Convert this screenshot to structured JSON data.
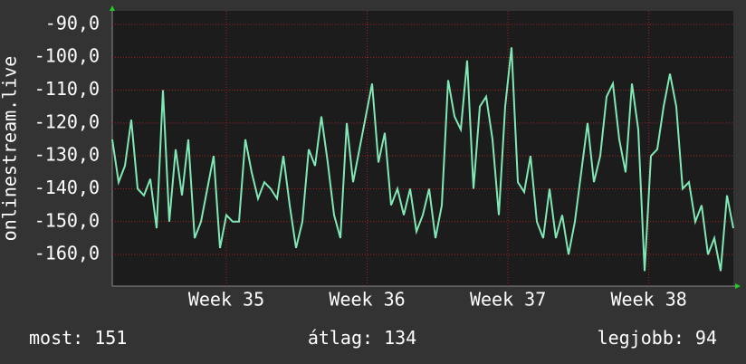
{
  "chart_data": {
    "type": "line",
    "y_label": "onlinestream.live",
    "xlim": [
      34.19,
      38.6
    ],
    "xticks": [
      {
        "value": 35,
        "label": "Week 35"
      },
      {
        "value": 36,
        "label": "Week 36"
      },
      {
        "value": 37,
        "label": "Week 37"
      },
      {
        "value": 38,
        "label": "Week 38"
      }
    ],
    "ylim": [
      -169.6,
      -85.9
    ],
    "yticks": [
      {
        "value": -90,
        "label": "-90,0"
      },
      {
        "value": -100,
        "label": "-100,0"
      },
      {
        "value": -110,
        "label": "-110,0"
      },
      {
        "value": -120,
        "label": "-120,0"
      },
      {
        "value": -130,
        "label": "-130,0"
      },
      {
        "value": -140,
        "label": "-140,0"
      },
      {
        "value": -150,
        "label": "-150,0"
      },
      {
        "value": -160,
        "label": "-160,0"
      }
    ],
    "grid": true,
    "x": [
      34.19,
      34.235,
      34.28,
      34.325,
      34.37,
      34.415,
      34.46,
      34.505,
      34.55,
      34.595,
      34.64,
      34.685,
      34.73,
      34.775,
      34.82,
      34.865,
      34.91,
      34.955,
      35.0,
      35.045,
      35.09,
      35.135,
      35.18,
      35.225,
      35.27,
      35.315,
      35.36,
      35.405,
      35.45,
      35.495,
      35.54,
      35.585,
      35.63,
      35.675,
      35.72,
      35.765,
      35.81,
      35.855,
      35.9,
      35.945,
      35.99,
      36.035,
      36.08,
      36.125,
      36.17,
      36.215,
      36.26,
      36.305,
      36.35,
      36.395,
      36.44,
      36.485,
      36.53,
      36.575,
      36.62,
      36.665,
      36.71,
      36.755,
      36.8,
      36.845,
      36.89,
      36.935,
      36.98,
      37.025,
      37.07,
      37.115,
      37.16,
      37.205,
      37.25,
      37.295,
      37.34,
      37.385,
      37.43,
      37.475,
      37.52,
      37.565,
      37.61,
      37.655,
      37.7,
      37.745,
      37.79,
      37.835,
      37.88,
      37.925,
      37.97,
      38.015,
      38.06,
      38.105,
      38.15,
      38.195,
      38.24,
      38.285,
      38.33,
      38.375,
      38.42,
      38.465,
      38.51,
      38.555,
      38.6
    ],
    "series": [
      {
        "color": "#80e8b4",
        "values": [
          -125,
          -138,
          -133,
          -119,
          -140,
          -142,
          -137,
          -152,
          -110,
          -150,
          -128,
          -142,
          -125,
          -155,
          -150,
          -140,
          -130,
          -158,
          -148,
          -150,
          -150,
          -125,
          -135,
          -143,
          -138,
          -140,
          -143,
          -130,
          -145,
          -158,
          -150,
          -128,
          -133,
          -118,
          -132,
          -148,
          -155,
          -120,
          -138,
          -128,
          -118,
          -108,
          -132,
          -123,
          -145,
          -140,
          -148,
          -140,
          -153,
          -148,
          -140,
          -155,
          -145,
          -107,
          -118,
          -122,
          -101,
          -140,
          -115,
          -112,
          -125,
          -148,
          -115,
          -97,
          -138,
          -141,
          -130,
          -150,
          -155,
          -140,
          -155,
          -148,
          -160,
          -150,
          -135,
          -120,
          -138,
          -130,
          -112,
          -108,
          -125,
          -135,
          -108,
          -122,
          -165,
          -130,
          -128,
          -115,
          -105,
          -115,
          -140,
          -138,
          -150,
          -145,
          -160,
          -155,
          -165,
          -142,
          -152
        ]
      }
    ],
    "stats": [
      {
        "label": "most:",
        "value": 151
      },
      {
        "label": "átlag:",
        "value": 134
      },
      {
        "label": "legjobb:",
        "value": 94
      }
    ]
  }
}
